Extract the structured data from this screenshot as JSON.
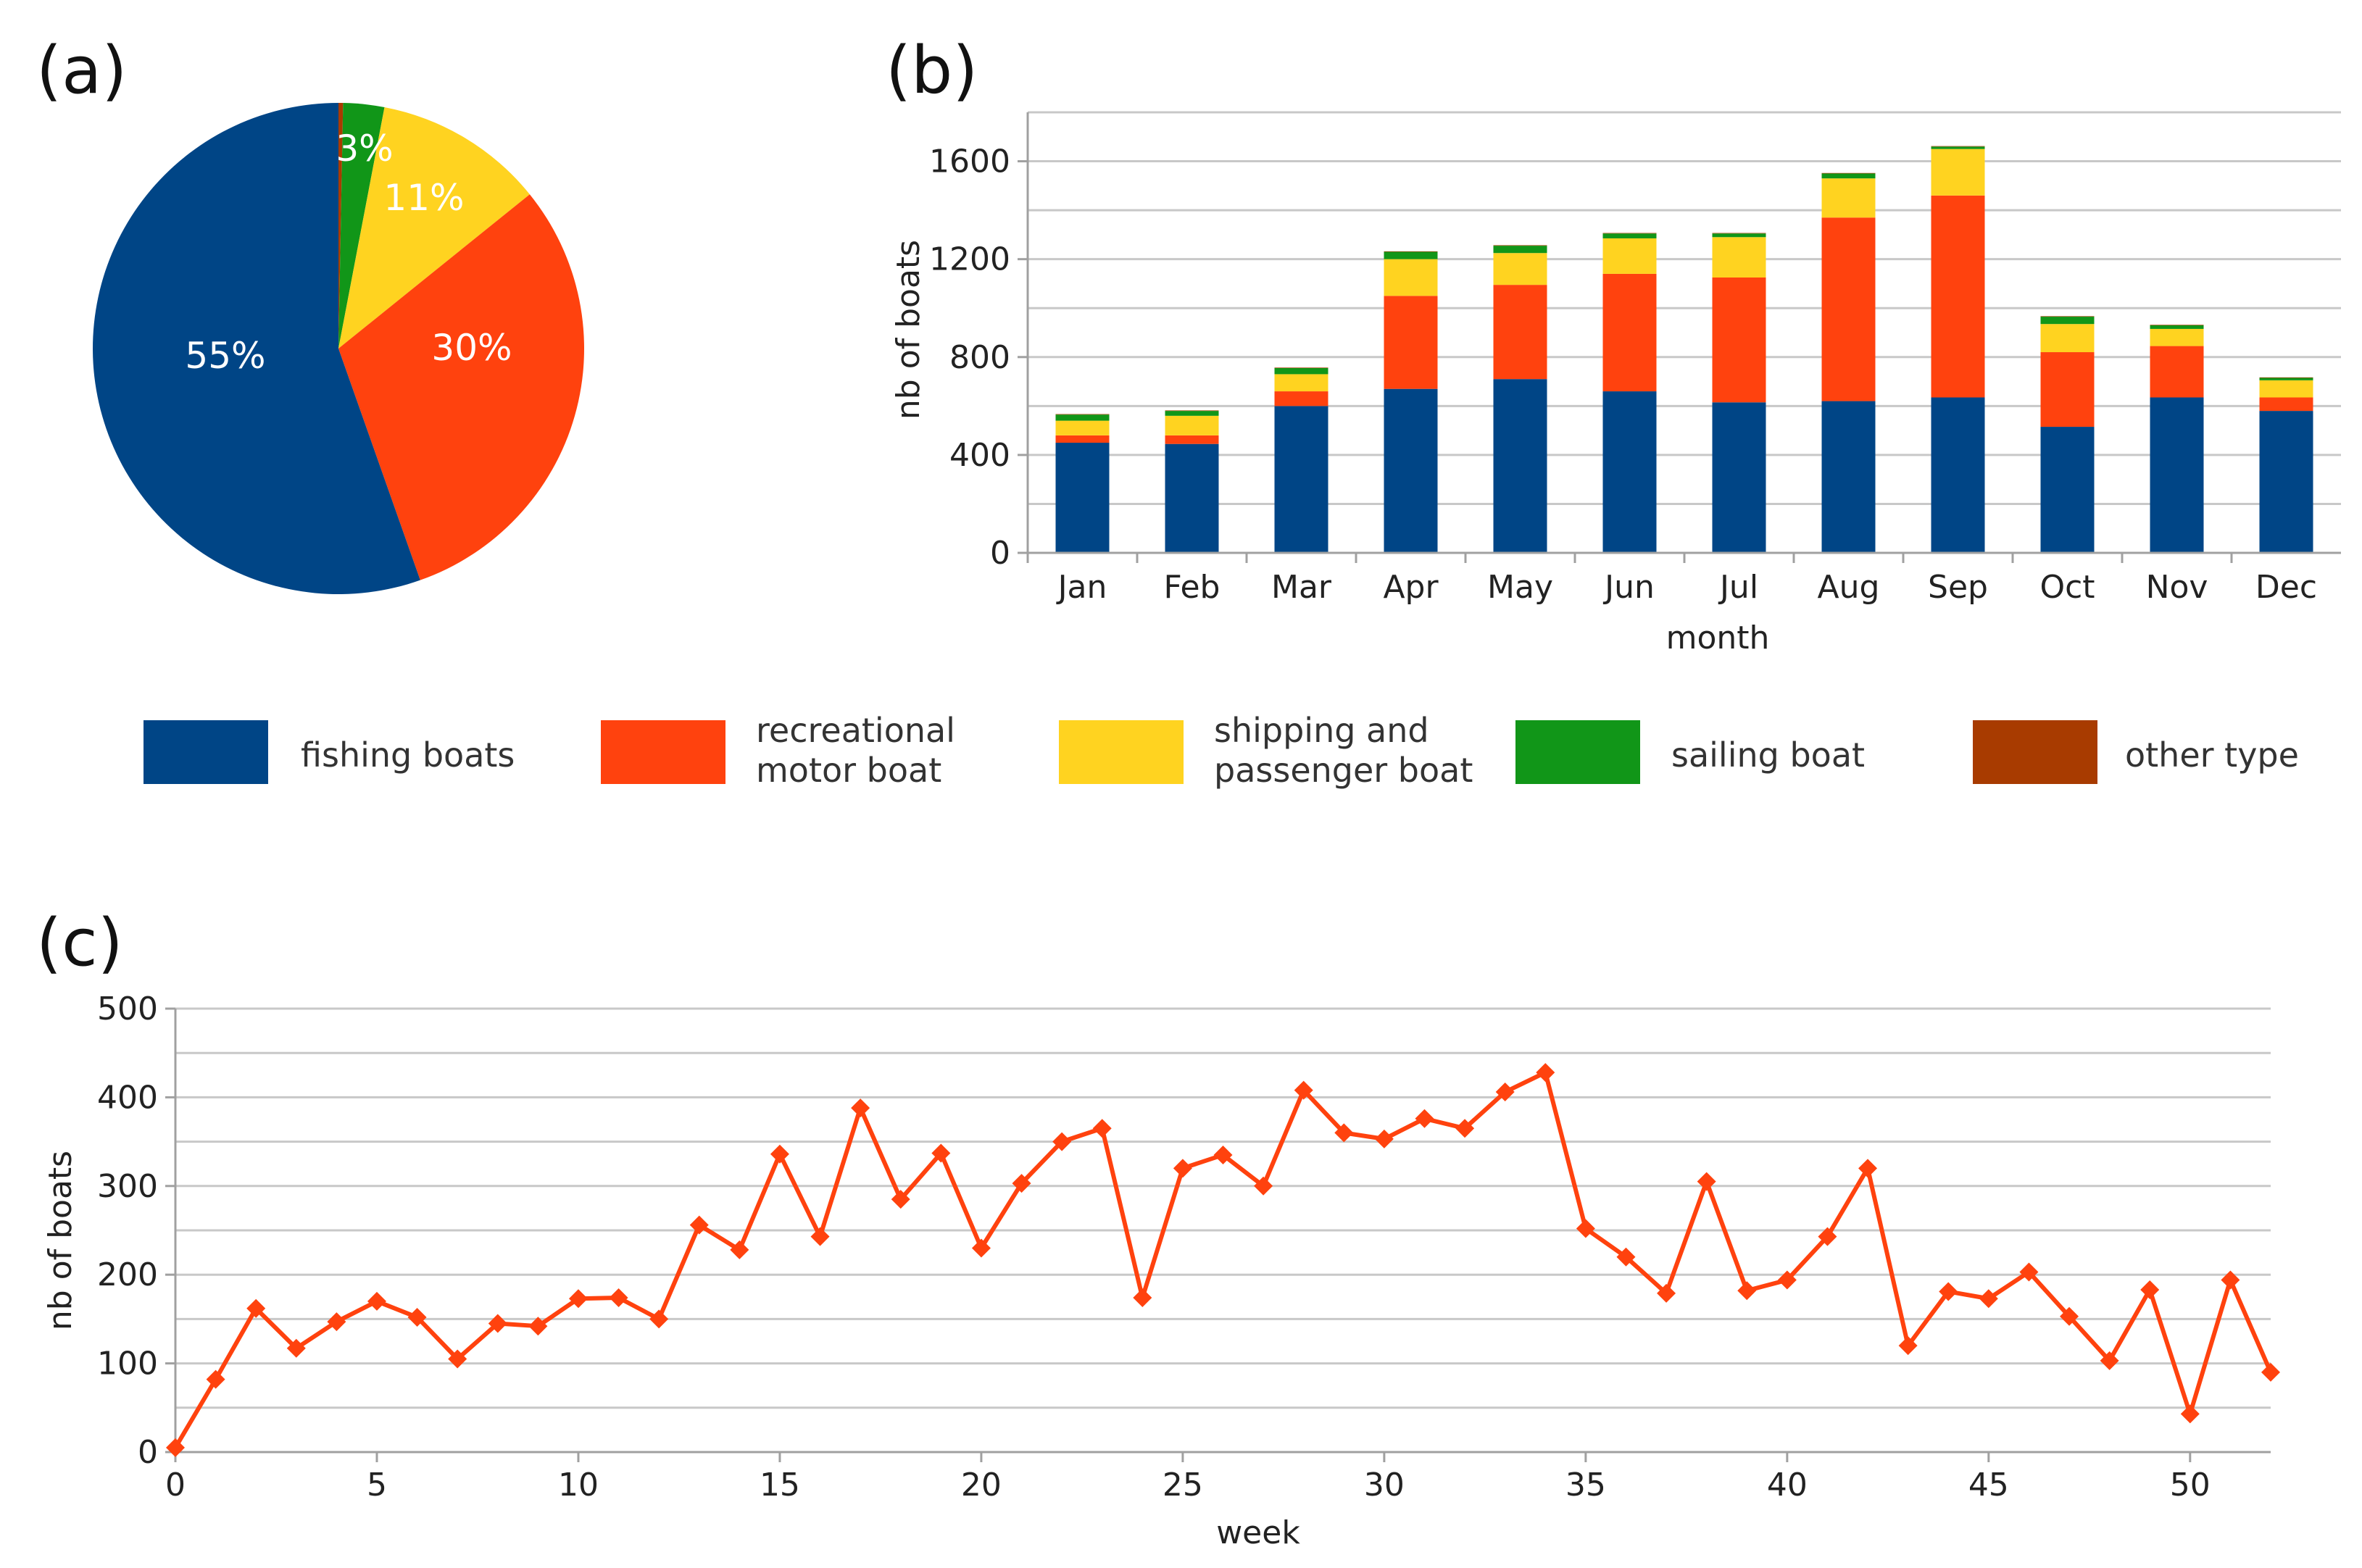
{
  "colors": {
    "fishing": "#004586",
    "recreational": "#ff420e",
    "shipping": "#ffd320",
    "sailing": "#119618",
    "other": "#a83b00",
    "weekly_line": "#ff420e"
  },
  "panel_labels": {
    "a": "(a)",
    "b": "(b)",
    "c": "(c)"
  },
  "legend": [
    {
      "key": "fishing",
      "lines": [
        "fishing boats"
      ]
    },
    {
      "key": "recreational",
      "lines": [
        "recreational",
        "motor boat"
      ]
    },
    {
      "key": "shipping",
      "lines": [
        "shipping and",
        "passenger boat"
      ]
    },
    {
      "key": "sailing",
      "lines": [
        "sailing boat"
      ]
    },
    {
      "key": "other",
      "lines": [
        "other type"
      ]
    }
  ],
  "chart_data": [
    {
      "id": "a",
      "type": "pie",
      "title": "",
      "start_angle_deg": 0,
      "direction": "clockwise",
      "slices": [
        {
          "key": "other",
          "value": 0.3,
          "label": ""
        },
        {
          "key": "sailing",
          "value": 2.7,
          "label": "3%"
        },
        {
          "key": "shipping",
          "value": 11.2,
          "label": "11%"
        },
        {
          "key": "recreational",
          "value": 30.4,
          "label": "30%"
        },
        {
          "key": "fishing",
          "value": 55.4,
          "label": "55%"
        }
      ]
    },
    {
      "id": "b",
      "type": "bar",
      "stacked": true,
      "title": "",
      "xlabel": "month",
      "ylabel": "nb of boats",
      "ylim": [
        0,
        1800
      ],
      "yticks": [
        0,
        400,
        800,
        1200,
        1600
      ],
      "grid": true,
      "categories": [
        "Jan",
        "Feb",
        "Mar",
        "Apr",
        "May",
        "Jun",
        "Jul",
        "Aug",
        "Sep",
        "Oct",
        "Nov",
        "Dec"
      ],
      "series": [
        {
          "key": "fishing",
          "name": "fishing boats",
          "values": [
            450,
            445,
            600,
            670,
            710,
            660,
            615,
            620,
            635,
            515,
            635,
            580
          ]
        },
        {
          "key": "recreational",
          "name": "recreational motor boat",
          "values": [
            30,
            35,
            60,
            380,
            385,
            480,
            510,
            750,
            825,
            305,
            210,
            55
          ]
        },
        {
          "key": "shipping",
          "name": "shipping and passenger boat",
          "values": [
            60,
            80,
            70,
            150,
            130,
            145,
            165,
            160,
            190,
            115,
            70,
            70
          ]
        },
        {
          "key": "sailing",
          "name": "sailing boat",
          "values": [
            25,
            20,
            25,
            30,
            30,
            20,
            15,
            20,
            10,
            30,
            15,
            10
          ]
        },
        {
          "key": "other",
          "name": "other type",
          "values": [
            2,
            2,
            2,
            2,
            2,
            2,
            2,
            2,
            2,
            2,
            2,
            2
          ]
        }
      ]
    },
    {
      "id": "c",
      "type": "line",
      "title": "",
      "xlabel": "week",
      "ylabel": "nb of boats",
      "xlim": [
        0,
        52
      ],
      "ylim": [
        0,
        500
      ],
      "xticks": [
        0,
        5,
        10,
        15,
        20,
        25,
        30,
        35,
        40,
        45,
        50
      ],
      "yticks": [
        0,
        100,
        200,
        300,
        400,
        500
      ],
      "grid": true,
      "marker": "diamond",
      "series": [
        {
          "name": "nb of boats",
          "x": [
            0,
            1,
            2,
            3,
            4,
            5,
            6,
            7,
            8,
            9,
            10,
            11,
            12,
            13,
            14,
            15,
            16,
            17,
            18,
            19,
            20,
            21,
            22,
            23,
            24,
            25,
            26,
            27,
            28,
            29,
            30,
            31,
            32,
            33,
            34,
            35,
            36,
            37,
            38,
            39,
            40,
            41,
            42,
            43,
            44,
            45,
            46,
            47,
            48,
            49,
            50,
            51,
            52
          ],
          "y": [
            5,
            82,
            162,
            117,
            147,
            170,
            152,
            105,
            145,
            142,
            173,
            174,
            150,
            256,
            228,
            336,
            243,
            388,
            285,
            337,
            230,
            303,
            350,
            365,
            174,
            320,
            335,
            300,
            408,
            360,
            353,
            376,
            365,
            406,
            428,
            252,
            220,
            179,
            305,
            182,
            194,
            243,
            320,
            120,
            181,
            173,
            203,
            153,
            103,
            183,
            43,
            194,
            90
          ]
        }
      ]
    }
  ]
}
